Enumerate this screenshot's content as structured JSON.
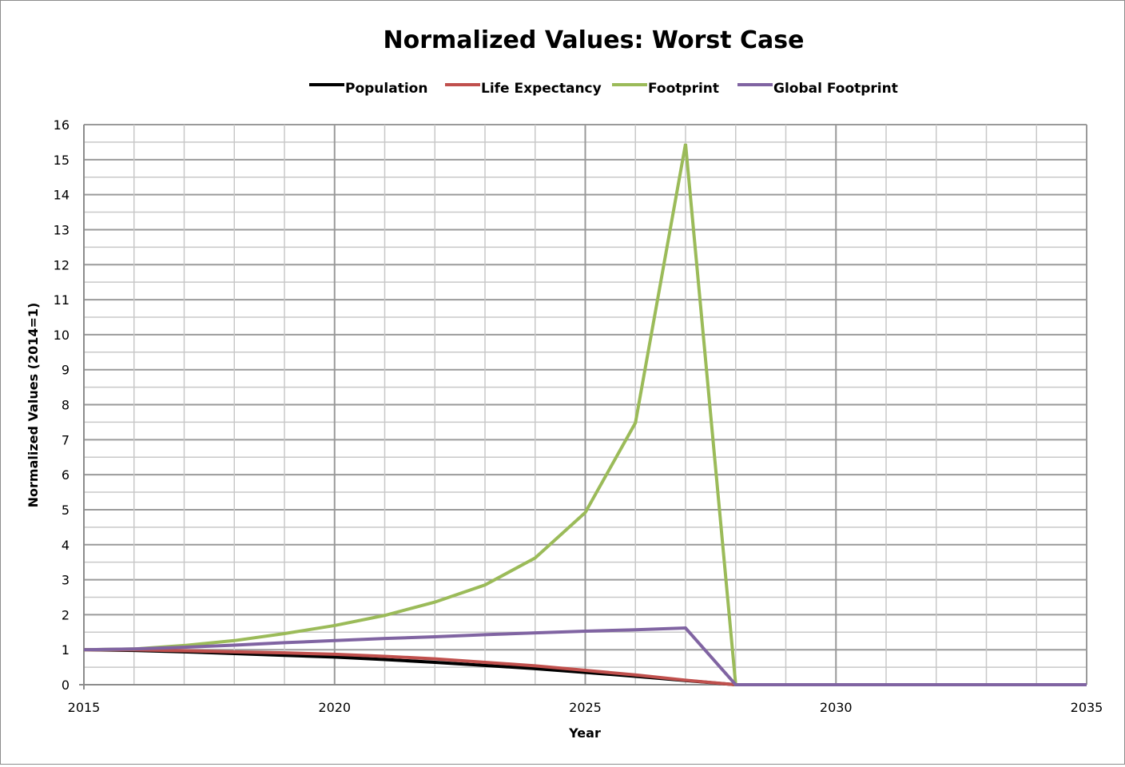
{
  "chart_data": {
    "type": "line",
    "title": "Normalized Values: Worst Case",
    "xlabel": "Year",
    "ylabel": "Normalized Values (2014=1)",
    "xlim": [
      2015,
      2035
    ],
    "ylim": [
      0,
      16
    ],
    "x_ticks": [
      2015,
      2020,
      2025,
      2030,
      2035
    ],
    "y_ticks": [
      0,
      1,
      2,
      3,
      4,
      5,
      6,
      7,
      8,
      9,
      10,
      11,
      12,
      13,
      14,
      15,
      16
    ],
    "grid": true,
    "legend_position": "top",
    "x": [
      2015,
      2016,
      2017,
      2018,
      2019,
      2020,
      2021,
      2022,
      2023,
      2024,
      2025,
      2026,
      2027,
      2028,
      2029,
      2030,
      2031,
      2032,
      2033,
      2034,
      2035
    ],
    "series": [
      {
        "name": "Population",
        "color": "#000000",
        "values": [
          1.0,
          0.98,
          0.94,
          0.89,
          0.84,
          0.79,
          0.72,
          0.64,
          0.55,
          0.46,
          0.35,
          0.24,
          0.12,
          0,
          0,
          0,
          0,
          0,
          0,
          0,
          0
        ]
      },
      {
        "name": "Life Expectancy",
        "color": "#c0504d",
        "values": [
          1.0,
          1.0,
          0.97,
          0.94,
          0.91,
          0.87,
          0.81,
          0.74,
          0.64,
          0.54,
          0.41,
          0.28,
          0.13,
          0,
          0,
          0,
          0,
          0,
          0,
          0,
          0
        ]
      },
      {
        "name": "Footprint",
        "color": "#9bbb59",
        "values": [
          1.0,
          1.02,
          1.12,
          1.26,
          1.46,
          1.69,
          1.98,
          2.36,
          2.85,
          3.62,
          4.92,
          7.48,
          15.45,
          0,
          0,
          0,
          0,
          0,
          0,
          0,
          0
        ]
      },
      {
        "name": "Global Footprint",
        "color": "#8064a2",
        "values": [
          1.0,
          1.02,
          1.07,
          1.13,
          1.2,
          1.26,
          1.32,
          1.37,
          1.43,
          1.48,
          1.53,
          1.57,
          1.62,
          0,
          0,
          0,
          0,
          0,
          0,
          0,
          0
        ]
      }
    ]
  }
}
